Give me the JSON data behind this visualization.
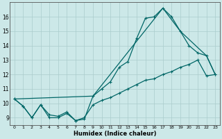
{
  "title": "",
  "xlabel": "Humidex (Indice chaleur)",
  "bg_color": "#cce8e8",
  "grid_color": "#aacccc",
  "line_color": "#006666",
  "xlim": [
    -0.5,
    23.5
  ],
  "ylim": [
    8.5,
    17.0
  ],
  "yticks": [
    9,
    10,
    11,
    12,
    13,
    14,
    15,
    16
  ],
  "xticks": [
    0,
    1,
    2,
    3,
    4,
    5,
    6,
    7,
    8,
    9,
    10,
    11,
    12,
    13,
    14,
    15,
    16,
    17,
    18,
    19,
    20,
    21,
    22,
    23
  ],
  "line1_x": [
    0,
    1,
    2,
    3,
    4,
    5,
    6,
    7,
    8,
    9,
    10,
    11,
    12,
    13,
    14,
    15,
    16,
    17,
    18,
    19,
    20,
    21,
    22,
    23
  ],
  "line1_y": [
    10.3,
    9.8,
    9.0,
    9.9,
    9.0,
    9.0,
    9.3,
    8.8,
    8.9,
    10.5,
    11.0,
    11.5,
    12.5,
    12.9,
    14.5,
    15.9,
    16.0,
    16.6,
    16.0,
    15.0,
    14.0,
    13.5,
    13.3,
    12.0
  ],
  "line2_x": [
    0,
    1,
    2,
    3,
    4,
    5,
    6,
    7,
    8,
    9,
    10,
    11,
    12,
    13,
    14,
    15,
    16,
    17,
    18,
    19,
    20,
    21,
    22,
    23
  ],
  "line2_y": [
    10.3,
    9.8,
    9.0,
    9.9,
    9.2,
    9.1,
    9.4,
    8.8,
    9.0,
    9.9,
    10.2,
    10.4,
    10.7,
    11.0,
    11.3,
    11.6,
    11.7,
    12.0,
    12.2,
    12.5,
    12.7,
    13.0,
    11.9,
    12.0
  ],
  "line3_x": [
    0,
    9,
    17,
    19,
    22,
    23
  ],
  "line3_y": [
    10.3,
    10.5,
    16.6,
    15.0,
    13.3,
    12.0
  ]
}
